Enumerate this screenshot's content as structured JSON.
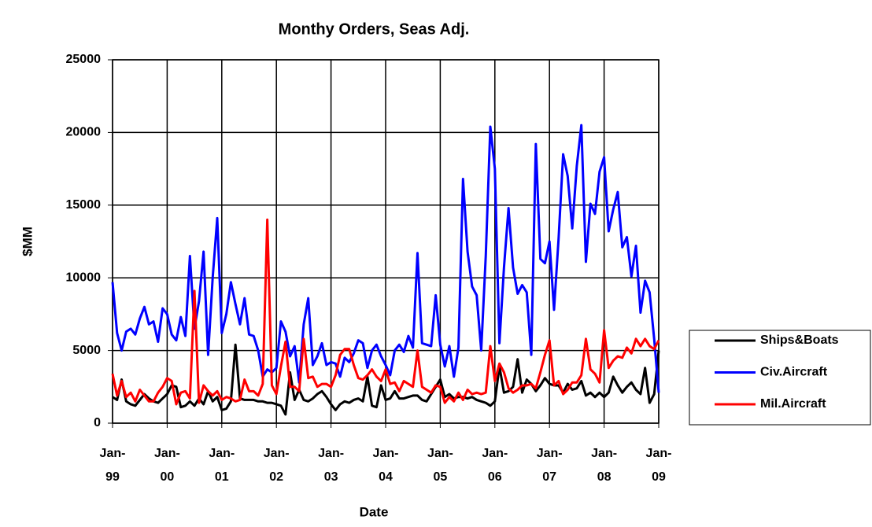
{
  "chart_data": {
    "type": "line",
    "title": "Monthy Orders, Seas Adj.",
    "x_label": "Date",
    "y_label": "$MM",
    "categories": [
      "Jan-99",
      null,
      null,
      null,
      null,
      null,
      null,
      null,
      null,
      null,
      null,
      null,
      "Jan-00",
      null,
      null,
      null,
      null,
      null,
      null,
      null,
      null,
      null,
      null,
      null,
      "Jan-01",
      null,
      null,
      null,
      null,
      null,
      null,
      null,
      null,
      null,
      null,
      null,
      "Jan-02",
      null,
      null,
      null,
      null,
      null,
      null,
      null,
      null,
      null,
      null,
      null,
      "Jan-03",
      null,
      null,
      null,
      null,
      null,
      null,
      null,
      null,
      null,
      null,
      null,
      "Jan-04",
      null,
      null,
      null,
      null,
      null,
      null,
      null,
      null,
      null,
      null,
      null,
      "Jan-05",
      null,
      null,
      null,
      null,
      null,
      null,
      null,
      null,
      null,
      null,
      null,
      "Jan-06",
      null,
      null,
      null,
      null,
      null,
      null,
      null,
      null,
      null,
      null,
      null,
      "Jan-07",
      null,
      null,
      null,
      null,
      null,
      null,
      null,
      null,
      null,
      null,
      null,
      "Jan-08",
      null,
      null,
      null,
      null,
      null,
      null,
      null,
      null,
      null,
      null,
      null,
      "Jan-09"
    ],
    "series": [
      {
        "name": "Ships&Boats",
        "color": "#000000",
        "values": [
          1800,
          1600,
          3000,
          1500,
          1300,
          1200,
          1600,
          2000,
          1700,
          1500,
          1400,
          1700,
          2000,
          2600,
          2500,
          1100,
          1200,
          1500,
          1200,
          1700,
          1300,
          2200,
          1500,
          1800,
          900,
          1000,
          1500,
          5400,
          1700,
          1600,
          1600,
          1600,
          1500,
          1500,
          1400,
          1400,
          1300,
          1200,
          600,
          3500,
          1600,
          2300,
          1600,
          1500,
          1700,
          2000,
          2200,
          1800,
          1300,
          900,
          1300,
          1500,
          1400,
          1600,
          1700,
          1500,
          3200,
          1200,
          1100,
          2600,
          1600,
          1700,
          2200,
          1700,
          1700,
          1800,
          1900,
          1900,
          1600,
          1500,
          2000,
          2500,
          3000,
          1800,
          2000,
          1700,
          1800,
          1800,
          1700,
          1800,
          1600,
          1500,
          1400,
          1200,
          1500,
          3900,
          2100,
          2200,
          2500,
          4400,
          2100,
          3000,
          2700,
          2200,
          2600,
          3100,
          2700,
          2600,
          2600,
          2100,
          2700,
          2300,
          2400,
          2900,
          1900,
          2100,
          1800,
          2100,
          1800,
          2100,
          3200,
          2600,
          2100,
          2500,
          2800,
          2300,
          2000,
          3800,
          1400,
          2000,
          5000
        ]
      },
      {
        "name": "Civ.Aircraft",
        "color": "#0000ff",
        "values": [
          9700,
          6200,
          5000,
          6300,
          6500,
          6100,
          7200,
          8000,
          6800,
          7000,
          5600,
          7900,
          7500,
          6100,
          5700,
          7300,
          6000,
          11500,
          6500,
          8400,
          11800,
          4700,
          10000,
          14100,
          6200,
          7500,
          9700,
          8200,
          6800,
          8600,
          6100,
          6000,
          5000,
          3200,
          3700,
          3500,
          3800,
          7000,
          6300,
          4600,
          5300,
          2800,
          6800,
          8600,
          4000,
          4600,
          5500,
          4000,
          4200,
          4100,
          3200,
          4500,
          4200,
          4800,
          5700,
          5500,
          3800,
          5000,
          5400,
          4600,
          4000,
          3300,
          5000,
          5400,
          4900,
          6000,
          5200,
          11700,
          5500,
          5400,
          5300,
          8800,
          5400,
          3900,
          5300,
          3200,
          5200,
          16800,
          11800,
          9400,
          8800,
          5000,
          11500,
          20400,
          17500,
          5500,
          10700,
          14800,
          10700,
          8900,
          9500,
          9000,
          4700,
          19200,
          11300,
          11000,
          12500,
          7800,
          12700,
          18500,
          17000,
          13400,
          17700,
          20500,
          11100,
          15100,
          14400,
          17300,
          18300,
          13200,
          14700,
          15900,
          12100,
          12800,
          10100,
          12200,
          7600,
          9800,
          9000,
          5800,
          2100
        ]
      },
      {
        "name": "Mil.Aircraft",
        "color": "#ff0000",
        "values": [
          3400,
          1900,
          2900,
          1800,
          2100,
          1500,
          2300,
          1900,
          1500,
          1500,
          2100,
          2500,
          3100,
          2900,
          1300,
          2100,
          2200,
          1700,
          9100,
          1400,
          2600,
          2200,
          1900,
          2200,
          1600,
          1800,
          1700,
          1500,
          1600,
          3000,
          2200,
          2200,
          1900,
          2700,
          14000,
          2600,
          2000,
          3900,
          5600,
          2500,
          2500,
          2200,
          5800,
          3100,
          3200,
          2500,
          2700,
          2700,
          2500,
          3300,
          4700,
          5100,
          5100,
          4000,
          3100,
          3000,
          3300,
          3700,
          3200,
          2900,
          3700,
          2700,
          2800,
          2200,
          2900,
          2700,
          2500,
          5000,
          2500,
          2300,
          2100,
          2600,
          2500,
          1400,
          1800,
          1500,
          2100,
          1600,
          2300,
          2000,
          2100,
          2000,
          2100,
          5300,
          2900,
          4100,
          3500,
          2400,
          2100,
          2300,
          2600,
          2600,
          2700,
          2400,
          3500,
          4700,
          5700,
          2600,
          2900,
          2000,
          2300,
          2800,
          2800,
          3300,
          5800,
          3700,
          3400,
          2800,
          6400,
          3800,
          4300,
          4600,
          4500,
          5200,
          4800,
          5800,
          5300,
          5800,
          5300,
          5100,
          5700
        ]
      }
    ],
    "ylim": [
      0,
      25000
    ],
    "yticks": [
      0,
      5000,
      10000,
      15000,
      20000,
      25000
    ],
    "grid": true,
    "legend": "right"
  }
}
